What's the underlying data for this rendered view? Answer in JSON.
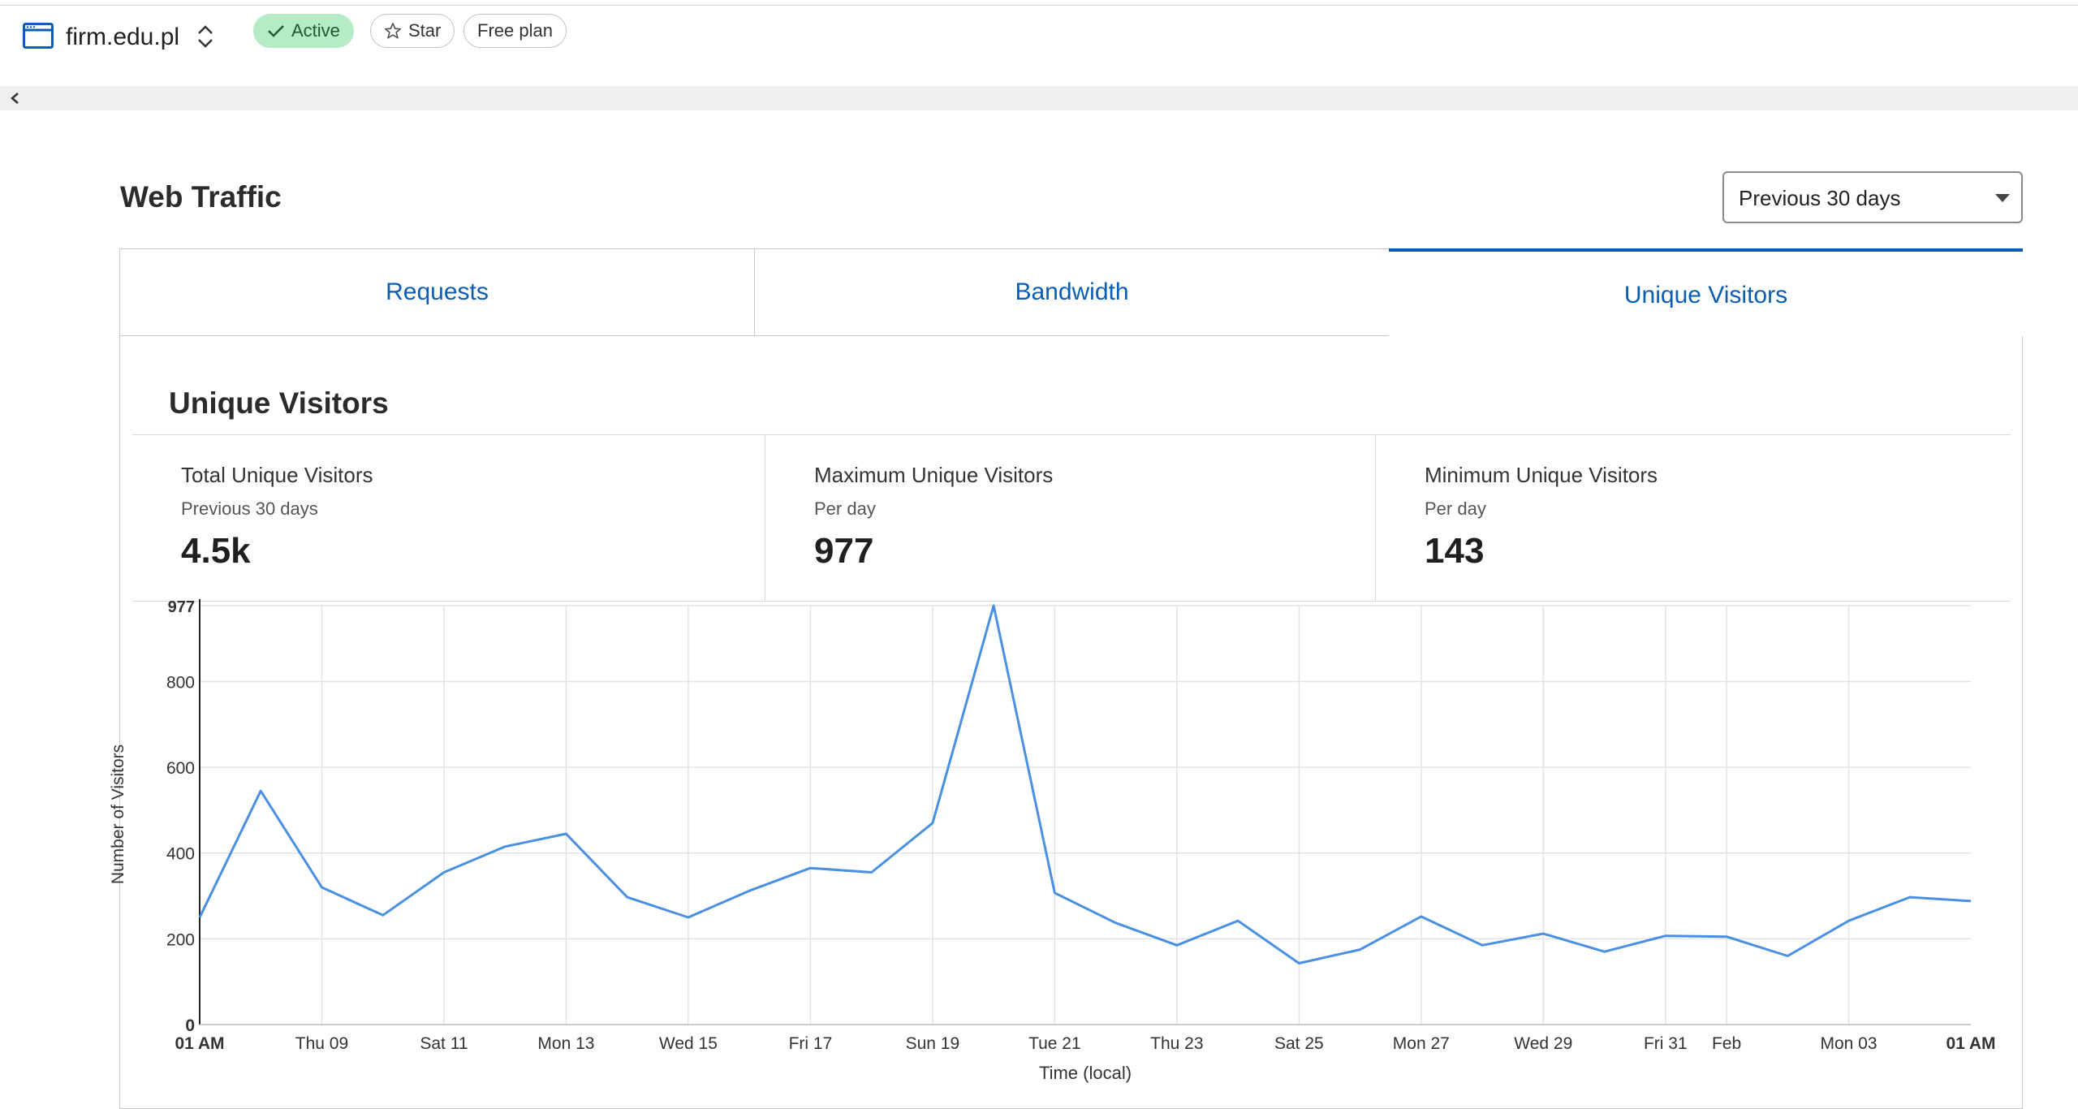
{
  "header": {
    "site_name": "firm.edu.pl",
    "status_label": "Active",
    "star_label": "Star",
    "plan_label": "Free plan"
  },
  "page": {
    "title": "Web Traffic",
    "range_selected": "Previous 30 days"
  },
  "tabs": [
    {
      "label": "Requests",
      "active": false
    },
    {
      "label": "Bandwidth",
      "active": false
    },
    {
      "label": "Unique Visitors",
      "active": true
    }
  ],
  "section_title": "Unique Visitors",
  "stats": [
    {
      "name": "Total Unique Visitors",
      "sub": "Previous 30 days",
      "value": "4.5k"
    },
    {
      "name": "Maximum Unique Visitors",
      "sub": "Per day",
      "value": "977"
    },
    {
      "name": "Minimum Unique Visitors",
      "sub": "Per day",
      "value": "143"
    }
  ],
  "colors": {
    "accent": "#0b5db3",
    "line": "#4a90e2",
    "active_pill": "#b5ecc6"
  },
  "chart_data": {
    "type": "line",
    "xlabel": "Time (local)",
    "ylabel": "Number of Visitors",
    "ylim": [
      0,
      977
    ],
    "y_ticks": [
      "0",
      "200",
      "400",
      "600",
      "800",
      "977"
    ],
    "x_tick_labels": [
      "01 AM",
      "Thu 09",
      "Sat 11",
      "Mon 13",
      "Wed 15",
      "Fri 17",
      "Sun 19",
      "Tue 21",
      "Thu 23",
      "Sat 25",
      "Mon 27",
      "Wed 29",
      "Fri 31",
      "Feb",
      "Mon 03",
      "01 AM"
    ],
    "grid": true,
    "series": [
      {
        "values": [
          250,
          545,
          320,
          255,
          355,
          415,
          445,
          297,
          250,
          312,
          365,
          355,
          470,
          977,
          307,
          237,
          185,
          242,
          143,
          175,
          252,
          185,
          212,
          170,
          207,
          205,
          160,
          242,
          297,
          288
        ]
      }
    ]
  }
}
